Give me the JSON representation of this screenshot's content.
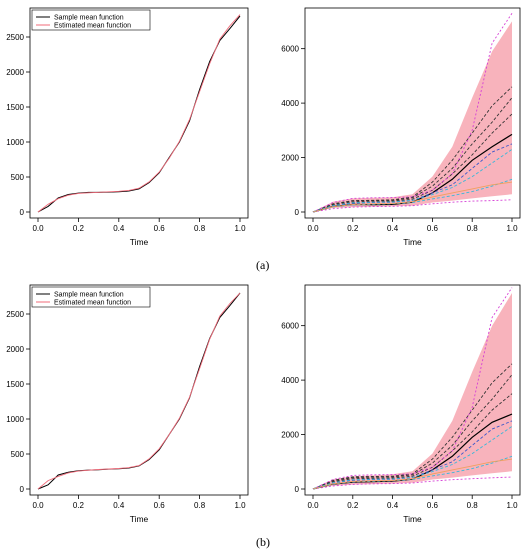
{
  "figure": {
    "sublabels": [
      "(a)",
      "(b)"
    ]
  },
  "chart_data": [
    {
      "type": "line",
      "panel": "a-left",
      "xlabel": "Time",
      "ylabel": "",
      "xlim": [
        0.0,
        1.0
      ],
      "ylim": [
        0,
        2800
      ],
      "xticks": [
        "0.0",
        "0.2",
        "0.4",
        "0.6",
        "0.8",
        "1.0"
      ],
      "yticks": [
        "0",
        "500",
        "1000",
        "1500",
        "2000",
        "2500"
      ],
      "legend": {
        "placement": "top-left",
        "entries": [
          "Sample mean function",
          "Estimated mean function"
        ]
      },
      "colors": {
        "sample": "#000000",
        "estimated": "#f06b7a"
      },
      "x": [
        0.0,
        0.05,
        0.1,
        0.15,
        0.2,
        0.25,
        0.3,
        0.35,
        0.4,
        0.45,
        0.5,
        0.55,
        0.6,
        0.65,
        0.7,
        0.75,
        0.8,
        0.85,
        0.9,
        0.95,
        1.0
      ],
      "series": [
        {
          "name": "Sample mean function",
          "values": [
            0,
            80,
            200,
            250,
            270,
            280,
            280,
            285,
            290,
            300,
            330,
            420,
            560,
            780,
            1000,
            1300,
            1750,
            2150,
            2450,
            2620,
            2800
          ]
        },
        {
          "name": "Estimated mean function",
          "values": [
            0,
            110,
            190,
            240,
            265,
            275,
            282,
            288,
            295,
            308,
            340,
            430,
            570,
            770,
            1010,
            1320,
            1720,
            2120,
            2470,
            2660,
            2820
          ]
        }
      ]
    },
    {
      "type": "line",
      "panel": "a-right",
      "xlabel": "Time",
      "ylabel": "",
      "xlim": [
        0.0,
        1.0
      ],
      "ylim": [
        0,
        7200
      ],
      "xticks": [
        "0.0",
        "0.2",
        "0.4",
        "0.6",
        "0.8",
        "1.0"
      ],
      "yticks": [
        "0",
        "2000",
        "4000",
        "6000"
      ],
      "colors": {
        "band": "#f7a6b0",
        "mean": "#000000",
        "dashed": "#333333",
        "magenta": "#d63fd6",
        "blue": "#3a57c9",
        "cyan": "#3ab8d8",
        "orange": "#f0a060"
      },
      "x": [
        0.0,
        0.1,
        0.2,
        0.3,
        0.4,
        0.5,
        0.6,
        0.7,
        0.8,
        0.9,
        1.0
      ],
      "band": {
        "lower": [
          0,
          150,
          180,
          200,
          210,
          230,
          350,
          420,
          500,
          580,
          650
        ],
        "upper": [
          0,
          380,
          500,
          520,
          540,
          650,
          1300,
          2400,
          4200,
          5900,
          7000
        ]
      },
      "series": [
        {
          "name": "",
          "style": "solid-black",
          "values": [
            0,
            200,
            280,
            270,
            280,
            360,
            700,
            1200,
            1900,
            2400,
            2850
          ]
        },
        {
          "name": "",
          "style": "dashed-black",
          "values": [
            0,
            300,
            420,
            430,
            450,
            550,
            1100,
            1900,
            2900,
            3900,
            4600
          ]
        },
        {
          "name": "",
          "style": "dashed-black",
          "values": [
            0,
            280,
            400,
            410,
            420,
            520,
            950,
            1600,
            2500,
            3300,
            4200
          ]
        },
        {
          "name": "",
          "style": "dashed-black",
          "values": [
            0,
            250,
            360,
            380,
            390,
            470,
            800,
            1400,
            2100,
            2900,
            3600
          ]
        },
        {
          "name": "",
          "style": "dashed-magenta",
          "values": [
            0,
            350,
            500,
            520,
            530,
            560,
            800,
            1400,
            3000,
            6200,
            7300
          ]
        },
        {
          "name": "",
          "style": "dashed-magenta",
          "values": [
            0,
            120,
            180,
            200,
            210,
            230,
            300,
            360,
            400,
            420,
            450
          ]
        },
        {
          "name": "",
          "style": "dashed-blue",
          "values": [
            0,
            220,
            320,
            350,
            360,
            420,
            700,
            1000,
            1600,
            2200,
            2500
          ]
        },
        {
          "name": "",
          "style": "dashed-cyan",
          "values": [
            0,
            230,
            340,
            360,
            370,
            430,
            640,
            900,
            1300,
            1800,
            2300
          ]
        },
        {
          "name": "",
          "style": "dashed-cyan",
          "values": [
            0,
            180,
            260,
            280,
            300,
            350,
            480,
            600,
            750,
            950,
            1200
          ]
        },
        {
          "name": "",
          "style": "orange",
          "values": [
            0,
            190,
            280,
            300,
            310,
            380,
            550,
            700,
            850,
            1000,
            1100
          ]
        }
      ]
    },
    {
      "type": "line",
      "panel": "b-left",
      "xlabel": "Time",
      "ylabel": "",
      "xlim": [
        0.0,
        1.0
      ],
      "ylim": [
        0,
        2800
      ],
      "xticks": [
        "0.0",
        "0.2",
        "0.4",
        "0.6",
        "0.8",
        "1.0"
      ],
      "yticks": [
        "0",
        "500",
        "1000",
        "1500",
        "2000",
        "2500"
      ],
      "legend": {
        "placement": "top-left",
        "entries": [
          "Sample mean function",
          "Estimated mean function"
        ]
      },
      "colors": {
        "sample": "#000000",
        "estimated": "#f06b7a"
      },
      "x": [
        0.0,
        0.05,
        0.1,
        0.15,
        0.2,
        0.25,
        0.3,
        0.35,
        0.4,
        0.45,
        0.5,
        0.55,
        0.6,
        0.65,
        0.7,
        0.75,
        0.8,
        0.85,
        0.9,
        0.95,
        1.0
      ],
      "series": [
        {
          "name": "Sample mean function",
          "values": [
            0,
            60,
            200,
            240,
            260,
            270,
            275,
            285,
            290,
            300,
            330,
            420,
            560,
            780,
            1000,
            1300,
            1750,
            2150,
            2450,
            2620,
            2800
          ]
        },
        {
          "name": "Estimated mean function",
          "values": [
            0,
            120,
            180,
            230,
            255,
            268,
            278,
            286,
            293,
            305,
            335,
            430,
            575,
            780,
            1010,
            1310,
            1720,
            2140,
            2470,
            2650,
            2800
          ]
        }
      ]
    },
    {
      "type": "line",
      "panel": "b-right",
      "xlabel": "Time",
      "ylabel": "",
      "xlim": [
        0.0,
        1.0
      ],
      "ylim": [
        0,
        7200
      ],
      "xticks": [
        "0.0",
        "0.2",
        "0.4",
        "0.6",
        "0.8",
        "1.0"
      ],
      "yticks": [
        "0",
        "2000",
        "4000",
        "6000"
      ],
      "colors": {
        "band": "#f7a6b0",
        "mean": "#000000",
        "dashed": "#333333",
        "magenta": "#d63fd6",
        "blue": "#3a57c9",
        "cyan": "#3ab8d8",
        "orange": "#f0a060"
      },
      "x": [
        0.0,
        0.1,
        0.2,
        0.3,
        0.4,
        0.5,
        0.6,
        0.7,
        0.8,
        0.9,
        1.0
      ],
      "band": {
        "lower": [
          0,
          120,
          160,
          180,
          200,
          230,
          350,
          420,
          500,
          580,
          650
        ],
        "upper": [
          0,
          350,
          470,
          500,
          540,
          650,
          1300,
          2500,
          4300,
          6000,
          7200
        ]
      },
      "series": [
        {
          "name": "",
          "style": "solid-black",
          "values": [
            0,
            180,
            250,
            270,
            290,
            360,
            700,
            1200,
            1900,
            2450,
            2750
          ]
        },
        {
          "name": "",
          "style": "dashed-black",
          "values": [
            0,
            320,
            450,
            460,
            470,
            560,
            1100,
            1900,
            2900,
            3900,
            4600
          ]
        },
        {
          "name": "",
          "style": "dashed-black",
          "values": [
            0,
            290,
            420,
            430,
            440,
            520,
            950,
            1600,
            2500,
            3300,
            4200
          ]
        },
        {
          "name": "",
          "style": "dashed-black",
          "values": [
            0,
            260,
            380,
            390,
            400,
            470,
            800,
            1400,
            2100,
            2900,
            3500
          ]
        },
        {
          "name": "",
          "style": "dashed-magenta",
          "values": [
            0,
            350,
            500,
            520,
            530,
            560,
            800,
            1400,
            3000,
            6300,
            7400
          ]
        },
        {
          "name": "",
          "style": "dashed-magenta",
          "values": [
            0,
            110,
            170,
            190,
            200,
            220,
            290,
            340,
            380,
            410,
            440
          ]
        },
        {
          "name": "",
          "style": "dashed-blue",
          "values": [
            0,
            220,
            320,
            350,
            360,
            420,
            700,
            1000,
            1600,
            2200,
            2500
          ]
        },
        {
          "name": "",
          "style": "dashed-cyan",
          "values": [
            0,
            230,
            340,
            360,
            370,
            430,
            640,
            900,
            1300,
            1800,
            2300
          ]
        },
        {
          "name": "",
          "style": "dashed-cyan",
          "values": [
            0,
            180,
            260,
            280,
            300,
            350,
            480,
            600,
            750,
            950,
            1200
          ]
        },
        {
          "name": "",
          "style": "orange",
          "values": [
            0,
            190,
            280,
            300,
            310,
            380,
            550,
            700,
            850,
            1000,
            1100
          ]
        }
      ]
    }
  ]
}
